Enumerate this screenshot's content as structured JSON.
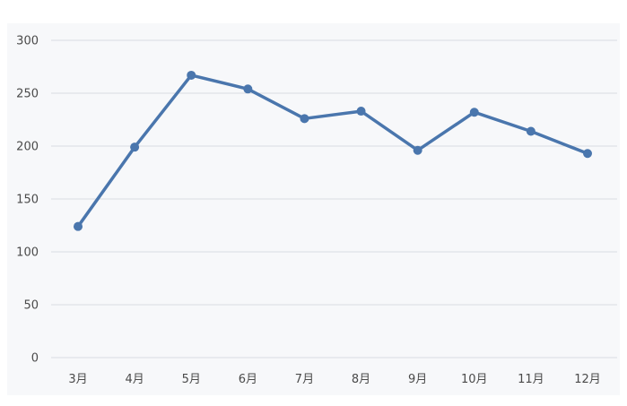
{
  "chart_data": {
    "type": "line",
    "categories": [
      "3月",
      "4月",
      "5月",
      "6月",
      "7月",
      "8月",
      "9月",
      "10月",
      "11月",
      "12月"
    ],
    "series": [
      {
        "values": [
          124,
          199,
          267,
          254,
          226,
          233,
          196,
          232,
          214,
          193
        ]
      }
    ],
    "title": "",
    "xlabel": "",
    "ylabel": "",
    "ylim": [
      0,
      300
    ],
    "yticks": [
      "0",
      "50",
      "100",
      "150",
      "200",
      "250",
      "300"
    ],
    "grid": true,
    "legend": "none",
    "line_color": "#4a76ad",
    "grid_color": "#dadde2"
  }
}
